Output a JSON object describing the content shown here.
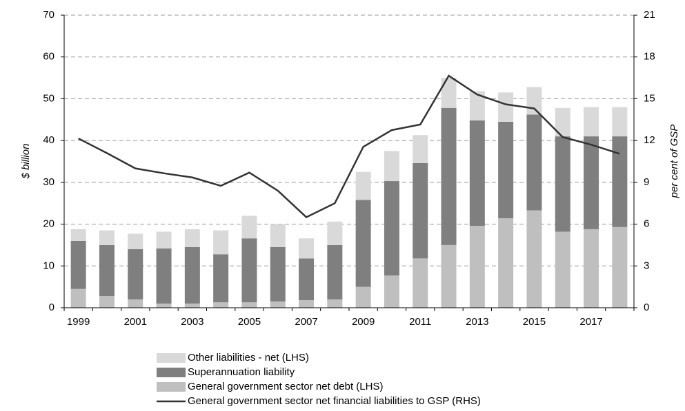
{
  "chart_data": {
    "type": "bar-line",
    "y_label": "$ billion",
    "y2_label": "per cent of GSP",
    "categories": [
      "1999",
      null,
      "2001",
      null,
      "2003",
      null,
      "2005",
      null,
      "2007",
      null,
      "2009",
      null,
      "2011",
      null,
      "2013",
      null,
      "2015",
      null,
      "2017",
      null
    ],
    "ylim": [
      0,
      70
    ],
    "yticks": [
      0,
      10,
      20,
      30,
      40,
      50,
      60,
      70
    ],
    "y2lim": [
      0,
      21
    ],
    "y2ticks": [
      0,
      3,
      6,
      9,
      12,
      15,
      18,
      21
    ],
    "grid": true,
    "series": [
      {
        "name": "General government sector net debt (LHS)",
        "color": "#bfbfbf",
        "type": "bar",
        "values": [
          4.5,
          2.8,
          2.0,
          1.0,
          1.0,
          1.3,
          1.3,
          1.5,
          1.8,
          2.0,
          5.0,
          7.7,
          11.8,
          15.0,
          19.6,
          21.4,
          23.3,
          18.2,
          18.8,
          19.3
        ]
      },
      {
        "name": "Superannuation liability",
        "color": "#7f7f7f",
        "type": "bar",
        "values": [
          11.5,
          12.2,
          12.0,
          13.2,
          13.5,
          11.5,
          15.3,
          13.0,
          10.0,
          13.0,
          20.8,
          22.6,
          22.8,
          32.8,
          25.2,
          23.1,
          22.9,
          22.8,
          22.2,
          21.7
        ]
      },
      {
        "name": "Other liabilities - net (LHS)",
        "color": "#d9d9d9",
        "type": "bar",
        "values": [
          2.8,
          3.5,
          3.7,
          4.0,
          4.3,
          5.7,
          5.4,
          5.5,
          4.8,
          5.6,
          6.7,
          7.2,
          6.7,
          7.2,
          7.0,
          7.0,
          6.6,
          6.8,
          7.0,
          7.0
        ]
      },
      {
        "name": "General government sector net financial liabilities to GSP (RHS)",
        "color": "#333333",
        "type": "line",
        "axis": "y2",
        "values": [
          12.15,
          11.1,
          10.0,
          9.65,
          9.35,
          8.75,
          9.7,
          8.4,
          6.5,
          7.5,
          11.55,
          12.75,
          13.15,
          16.65,
          15.3,
          14.6,
          14.3,
          12.25,
          11.7,
          11.05
        ]
      }
    ]
  }
}
